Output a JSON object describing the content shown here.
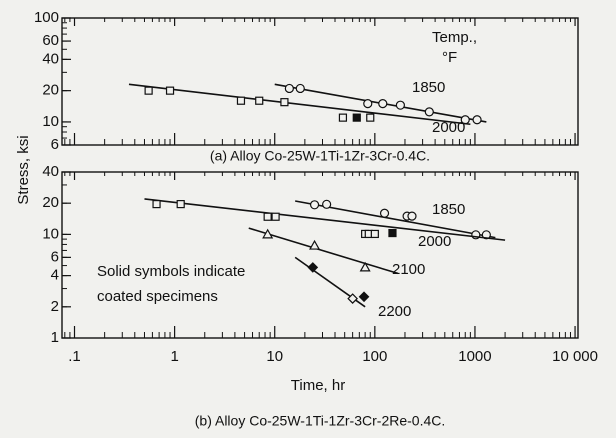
{
  "chart_data": [
    {
      "type": "scatter",
      "title": "(a) Alloy Co-25W-1Ti-1Zr-3Cr-0.4C.",
      "ylabel": "Stress, ksi",
      "legend_title": [
        "Temp.,",
        "°F"
      ],
      "log_x": true,
      "log_y": true,
      "minor_ticks": true,
      "xlim": [
        0.075,
        10700
      ],
      "ylim": [
        6,
        100
      ],
      "yticks": [
        6,
        10,
        20,
        40,
        60,
        100
      ],
      "series": [
        {
          "name": "1850",
          "marker": "circle",
          "color": "#111111",
          "x": [
            14,
            18,
            85,
            120,
            180,
            350,
            800,
            1050
          ],
          "values": [
            21,
            21,
            15,
            15,
            14.5,
            12.5,
            10.5,
            10.5
          ],
          "solid": [
            false,
            false,
            false,
            false,
            false,
            false,
            false,
            false
          ],
          "fit_x": [
            10,
            1300
          ],
          "fit_y": [
            23,
            10
          ]
        },
        {
          "name": "2000",
          "marker": "square",
          "color": "#111111",
          "x": [
            0.55,
            0.9,
            4.6,
            7,
            12.5,
            48,
            66,
            90
          ],
          "values": [
            20,
            20,
            16,
            16,
            15.5,
            11,
            11,
            11
          ],
          "solid": [
            false,
            false,
            false,
            false,
            false,
            false,
            true,
            false
          ],
          "fit_x": [
            0.35,
            900
          ],
          "fit_y": [
            23,
            9.5
          ]
        }
      ]
    },
    {
      "type": "scatter",
      "title": "(b) Alloy Co-25W-1Ti-1Zr-3Cr-2Re-0.4C.",
      "xlabel": "Time, hr",
      "annotation": [
        "Solid symbols indicate",
        "coated specimens"
      ],
      "log_x": true,
      "log_y": true,
      "minor_ticks": true,
      "xlim": [
        0.075,
        10700
      ],
      "ylim": [
        1,
        40
      ],
      "xticks": [
        {
          "value": 0.1,
          "label": ".1"
        },
        1,
        10,
        100,
        1000,
        {
          "value": 10000,
          "label": "10 000"
        }
      ],
      "yticks": [
        1,
        2,
        4,
        6,
        10,
        20,
        40
      ],
      "series": [
        {
          "name": "1850",
          "marker": "circle",
          "color": "#111111",
          "x": [
            25,
            33,
            125,
            210,
            235,
            1020,
            1300
          ],
          "values": [
            19.3,
            19.5,
            16,
            15,
            15,
            9.9,
            9.9
          ],
          "solid": [
            false,
            false,
            false,
            false,
            false,
            false,
            false
          ],
          "fit_x": [
            16,
            1600
          ],
          "fit_y": [
            21,
            9.3
          ]
        },
        {
          "name": "2000",
          "marker": "square",
          "color": "#111111",
          "x": [
            0.66,
            1.15,
            8.5,
            10.2,
            80,
            87,
            100,
            150
          ],
          "values": [
            19.6,
            19.6,
            14.8,
            14.8,
            10.1,
            10.1,
            10.1,
            10.3
          ],
          "solid": [
            false,
            false,
            false,
            false,
            false,
            false,
            false,
            true
          ],
          "fit_x": [
            0.5,
            2000
          ],
          "fit_y": [
            22,
            8.8
          ]
        },
        {
          "name": "2100",
          "marker": "triangle",
          "color": "#111111",
          "x": [
            8.5,
            25,
            80
          ],
          "values": [
            10,
            7.8,
            4.8
          ],
          "solid": [
            false,
            false,
            false
          ],
          "fit_x": [
            5.5,
            170
          ],
          "fit_y": [
            11.5,
            4.2
          ]
        },
        {
          "name": "2200",
          "marker": "diamond",
          "color": "#111111",
          "x": [
            24,
            60,
            78
          ],
          "values": [
            4.8,
            2.4,
            2.5
          ],
          "solid": [
            true,
            false,
            true
          ],
          "fit_x": [
            16,
            80
          ],
          "fit_y": [
            6,
            2
          ]
        }
      ]
    }
  ]
}
